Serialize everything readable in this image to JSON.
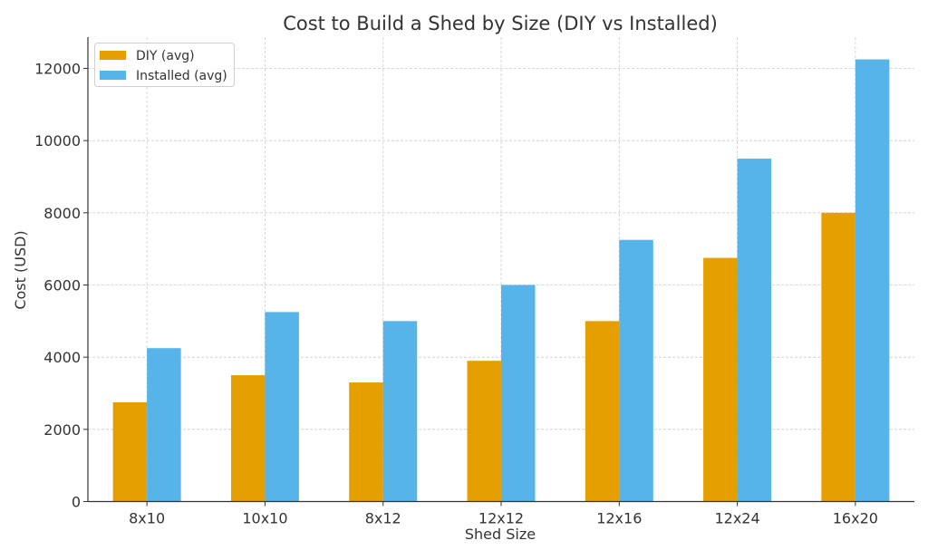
{
  "chart_data": {
    "type": "bar",
    "title": "Cost to Build a Shed by Size (DIY vs Installed)",
    "xlabel": "Shed Size",
    "ylabel": "Cost (USD)",
    "categories": [
      "8x10",
      "10x10",
      "8x12",
      "12x12",
      "12x16",
      "12x24",
      "16x20"
    ],
    "series": [
      {
        "name": "DIY (avg)",
        "color": "#E69F00",
        "values": [
          2750,
          3500,
          3300,
          3900,
          5000,
          6750,
          8000
        ]
      },
      {
        "name": "Installed (avg)",
        "color": "#56B4E9",
        "values": [
          4250,
          5250,
          5000,
          6000,
          7250,
          9500,
          12250
        ]
      }
    ],
    "ylim": [
      0,
      12862
    ],
    "yticks": [
      0,
      2000,
      4000,
      6000,
      8000,
      10000,
      12000
    ],
    "grid": true,
    "legend_position": "top-left"
  }
}
